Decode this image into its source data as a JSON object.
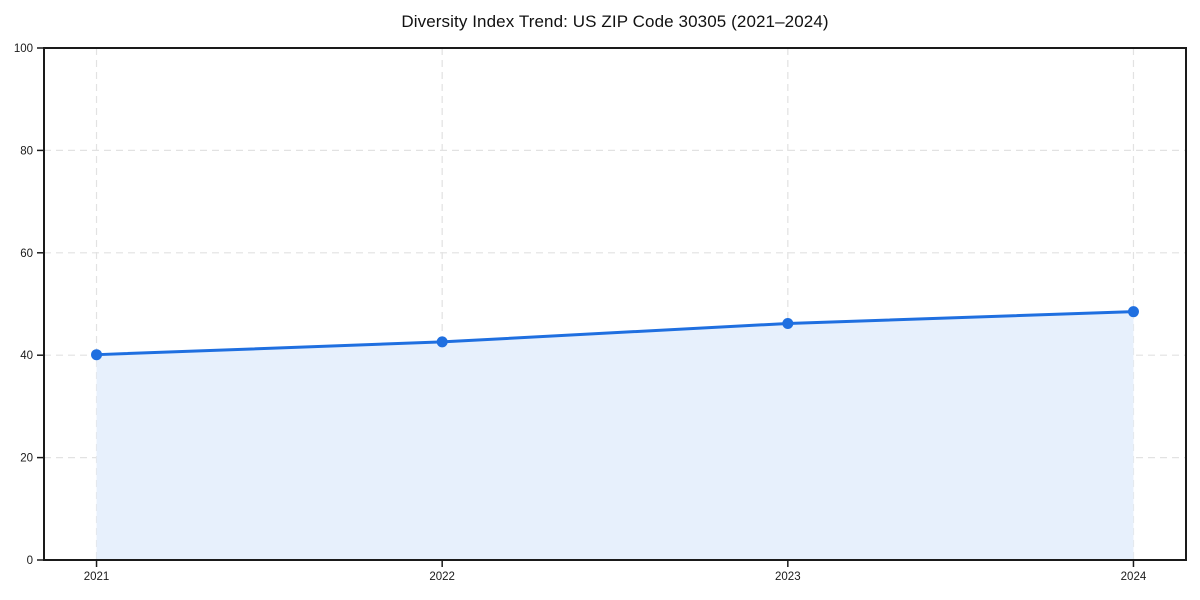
{
  "page": {
    "background": "#ffffff"
  },
  "chart_data": {
    "type": "area",
    "title": "Diversity Index Trend: US ZIP Code 30305 (2021–2024)",
    "categories": [
      "2021",
      "2022",
      "2023",
      "2024"
    ],
    "values": [
      40.1,
      42.6,
      46.2,
      48.5
    ],
    "xlabel": "",
    "ylabel": "",
    "ylim": [
      0,
      100
    ],
    "yticks": [
      0,
      20,
      40,
      60,
      80,
      100
    ],
    "grid": true,
    "grid_style": "dashed",
    "legend": "none",
    "colors": {
      "line": "#1f6fe0",
      "marker": "#1f6fe0",
      "fill": "#e7f0fc",
      "grid": "#e2e2e2",
      "axis": "#1a1a1a",
      "title": "#111111",
      "tick_label": "#1a1a1a"
    }
  }
}
